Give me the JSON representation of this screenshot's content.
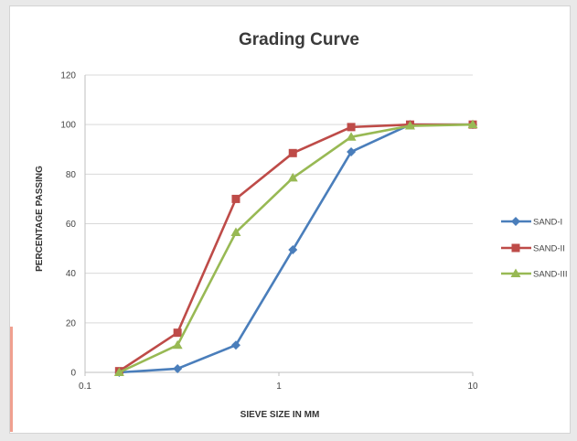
{
  "chart_data": {
    "type": "line",
    "title": "Grading Curve",
    "xlabel": "SIEVE SIZE IN MM",
    "ylabel": "PERCENTAGE PASSING",
    "xscale": "log",
    "xlim": [
      0.1,
      10
    ],
    "ylim": [
      0,
      120
    ],
    "x_ticks": [
      "0.1",
      "1",
      "10"
    ],
    "y_ticks": [
      "0",
      "20",
      "40",
      "60",
      "80",
      "100",
      "120"
    ],
    "grid": "horizontal",
    "legend_position": "right",
    "series": [
      {
        "name": "SAND-I",
        "color": "#4a7ebb",
        "marker": "diamond",
        "x": [
          0.15,
          0.3,
          0.6,
          1.18,
          2.36,
          4.75,
          10
        ],
        "y": [
          0,
          1.5,
          11,
          49.5,
          89,
          100,
          100
        ]
      },
      {
        "name": "SAND-II",
        "color": "#be4b48",
        "marker": "square",
        "x": [
          0.15,
          0.3,
          0.6,
          1.18,
          2.36,
          4.75,
          10
        ],
        "y": [
          0.5,
          16,
          70,
          88.5,
          99,
          100,
          100
        ]
      },
      {
        "name": "SAND-III",
        "color": "#98b954",
        "marker": "triangle",
        "x": [
          0.15,
          0.3,
          0.6,
          1.18,
          2.36,
          4.75,
          10
        ],
        "y": [
          0,
          11,
          56.5,
          78.5,
          95,
          99.5,
          100
        ]
      }
    ]
  }
}
